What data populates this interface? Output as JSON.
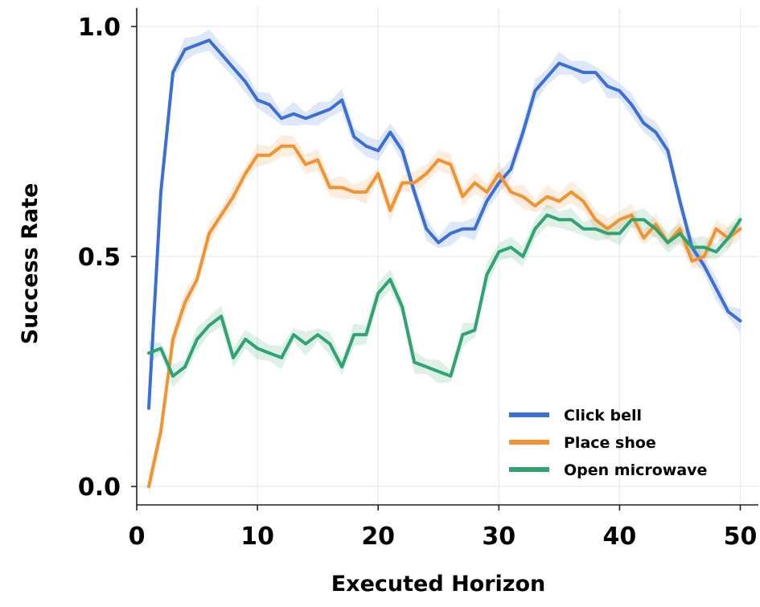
{
  "chart_data": {
    "type": "line",
    "title": "",
    "xlabel": "Executed Horizon",
    "ylabel": "Success Rate",
    "xlim": [
      0,
      51.5
    ],
    "ylim": [
      -0.04,
      1.04
    ],
    "xticks": [
      0,
      10,
      20,
      30,
      40,
      50
    ],
    "yticks": [
      0.0,
      0.5,
      1.0
    ],
    "xtick_labels": [
      "0",
      "10",
      "20",
      "30",
      "40",
      "50"
    ],
    "ytick_labels": [
      "0.0",
      "0.5",
      "1.0"
    ],
    "grid": true,
    "legend_position": "lower-right",
    "x": [
      1,
      2,
      3,
      4,
      5,
      6,
      7,
      8,
      9,
      10,
      11,
      12,
      13,
      14,
      15,
      16,
      17,
      18,
      19,
      20,
      21,
      22,
      23,
      24,
      25,
      26,
      27,
      28,
      29,
      30,
      31,
      32,
      33,
      34,
      35,
      36,
      37,
      38,
      39,
      40,
      41,
      42,
      43,
      44,
      45,
      46,
      47,
      48,
      49,
      50
    ],
    "series": [
      {
        "name": "Click bell",
        "color": "#3a6fd8",
        "band_color": "#3a6fd8",
        "values": [
          0.17,
          0.64,
          0.9,
          0.95,
          0.96,
          0.97,
          0.94,
          0.91,
          0.88,
          0.84,
          0.83,
          0.8,
          0.81,
          0.8,
          0.81,
          0.82,
          0.84,
          0.76,
          0.74,
          0.73,
          0.77,
          0.73,
          0.64,
          0.56,
          0.53,
          0.55,
          0.56,
          0.56,
          0.62,
          0.66,
          0.69,
          0.77,
          0.86,
          0.89,
          0.92,
          0.91,
          0.9,
          0.9,
          0.87,
          0.86,
          0.83,
          0.79,
          0.77,
          0.73,
          0.62,
          0.52,
          0.48,
          0.43,
          0.38,
          0.36
        ]
      },
      {
        "name": "Place shoe",
        "color": "#f3922f",
        "band_color": "#f3922f",
        "values": [
          0.0,
          0.12,
          0.32,
          0.4,
          0.45,
          0.55,
          0.59,
          0.63,
          0.68,
          0.72,
          0.72,
          0.74,
          0.74,
          0.7,
          0.71,
          0.65,
          0.65,
          0.64,
          0.64,
          0.68,
          0.6,
          0.66,
          0.66,
          0.68,
          0.71,
          0.7,
          0.63,
          0.66,
          0.64,
          0.68,
          0.64,
          0.63,
          0.61,
          0.63,
          0.62,
          0.64,
          0.62,
          0.58,
          0.56,
          0.58,
          0.59,
          0.54,
          0.57,
          0.53,
          0.56,
          0.49,
          0.5,
          0.56,
          0.54,
          0.56
        ]
      },
      {
        "name": "Open microwave",
        "color": "#2fa372",
        "band_color": "#2fa372",
        "values": [
          0.29,
          0.3,
          0.24,
          0.26,
          0.32,
          0.35,
          0.37,
          0.28,
          0.32,
          0.3,
          0.29,
          0.28,
          0.33,
          0.31,
          0.33,
          0.31,
          0.26,
          0.33,
          0.33,
          0.42,
          0.45,
          0.39,
          0.27,
          0.26,
          0.25,
          0.24,
          0.33,
          0.34,
          0.46,
          0.51,
          0.52,
          0.5,
          0.56,
          0.59,
          0.58,
          0.58,
          0.56,
          0.56,
          0.55,
          0.55,
          0.58,
          0.58,
          0.56,
          0.53,
          0.55,
          0.52,
          0.52,
          0.51,
          0.54,
          0.58
        ]
      }
    ]
  }
}
